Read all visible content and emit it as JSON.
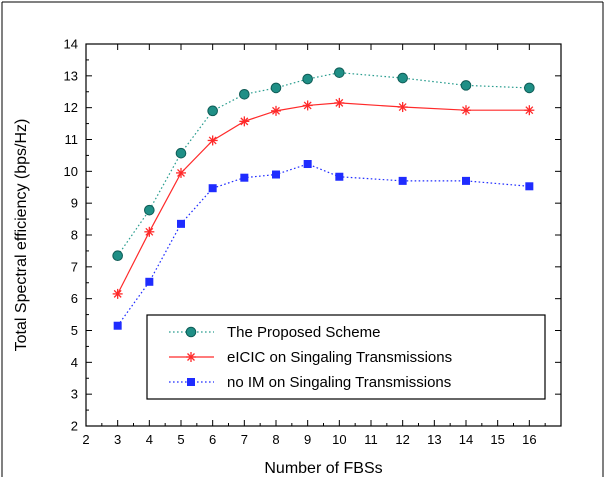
{
  "chart_data": {
    "type": "line",
    "title": "",
    "xlabel": "Number of FBSs",
    "ylabel": "Total Spectral efficiency (bps/Hz)",
    "xlim": [
      2,
      17
    ],
    "ylim": [
      2,
      14
    ],
    "xticks": [
      "2",
      "3",
      "4",
      "5",
      "6",
      "7",
      "8",
      "9",
      "10",
      "11",
      "12",
      "13",
      "14",
      "15",
      "16"
    ],
    "yticks": [
      "2",
      "3",
      "4",
      "5",
      "6",
      "7",
      "8",
      "9",
      "10",
      "11",
      "12",
      "13",
      "14"
    ],
    "grid": false,
    "legend_position": "bottom-right inside plot",
    "x": [
      3,
      4,
      5,
      6,
      7,
      8,
      9,
      10,
      12,
      14,
      16
    ],
    "series": [
      {
        "name": "The Proposed Scheme",
        "values": [
          7.35,
          8.78,
          10.57,
          11.9,
          12.42,
          12.62,
          12.9,
          13.1,
          12.93,
          12.7,
          12.62
        ],
        "color": "#2a9d8f",
        "line_style": "dotted",
        "marker": "circle"
      },
      {
        "name": "eICIC on Singaling Transmissions",
        "values": [
          6.15,
          8.1,
          9.95,
          10.97,
          11.57,
          11.9,
          12.07,
          12.15,
          12.02,
          11.92,
          11.92
        ],
        "color": "#ff2a2a",
        "line_style": "solid",
        "marker": "asterisk"
      },
      {
        "name": "no IM on Singaling Transmissions",
        "values": [
          5.15,
          6.53,
          8.35,
          9.47,
          9.8,
          9.9,
          10.23,
          9.83,
          9.7,
          9.7,
          9.53
        ],
        "color": "#1f2cff",
        "line_style": "dotted",
        "marker": "square"
      }
    ]
  }
}
